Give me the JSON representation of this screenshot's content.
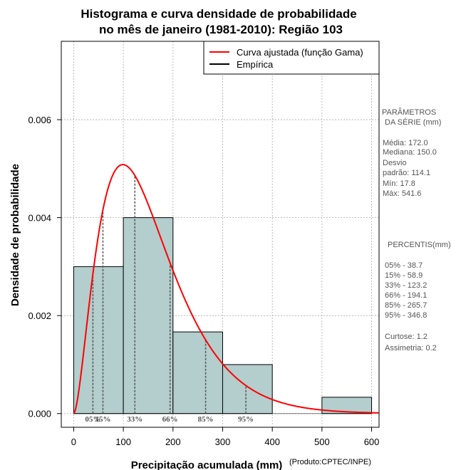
{
  "chart_data": {
    "type": "histogram",
    "title_line1": "Histograma e curva densidade de probabilidade",
    "title_line2": "no mês de janeiro (1981-2010): Região 103",
    "xlabel": "Precipitação acumulada (mm)",
    "ylabel": "Densidade de probabilidade",
    "credit": "(Produto:CPTEC/INPE)",
    "xlim": [
      -25,
      615
    ],
    "ylim": [
      -0.00028,
      0.0076
    ],
    "x_ticks": [
      0,
      100,
      200,
      300,
      400,
      500,
      600
    ],
    "y_ticks": [
      0.0,
      0.002,
      0.004,
      0.006
    ],
    "y_tick_labels": [
      "0.000",
      "0.002",
      "0.004",
      "0.006"
    ],
    "grid": true,
    "bins": [
      {
        "start": 0,
        "end": 100,
        "density": 0.003
      },
      {
        "start": 100,
        "end": 200,
        "density": 0.004
      },
      {
        "start": 200,
        "end": 300,
        "density": 0.001667
      },
      {
        "start": 300,
        "end": 400,
        "density": 0.001
      },
      {
        "start": 400,
        "end": 500,
        "density": 0.0
      },
      {
        "start": 500,
        "end": 600,
        "density": 0.000333
      }
    ],
    "fitted_curve": {
      "distribution": "gamma",
      "shape": 2.75,
      "scale": 56.6,
      "color": "#ff0000"
    },
    "percentile_lines": [
      {
        "label": "05%",
        "value": 38.7
      },
      {
        "label": "15%",
        "value": 58.9
      },
      {
        "label": "33%",
        "value": 123.2
      },
      {
        "label": "66%",
        "value": 194.1
      },
      {
        "label": "85%",
        "value": 265.7
      },
      {
        "label": "95%",
        "value": 346.8
      }
    ],
    "legend": {
      "position": "top-right",
      "entries": [
        {
          "label": "Curva ajustada (função Gama)",
          "color": "#ff0000"
        },
        {
          "label": "Empírica",
          "color": "#000000"
        }
      ]
    },
    "colors": {
      "bar_fill": "#b4cdcd",
      "curve": "#ff0000",
      "grid": "#aaaaaa"
    }
  },
  "side_panel": {
    "params_title_1": "PARÂMETROS",
    "params_title_2": "DA SÉRIE (mm)",
    "media": "Média:  172.0",
    "mediana": "Mediana:  150.0",
    "desvio_1": "Desvio",
    "desvio_2": "padrão:  114.1",
    "min": "Mín:  17.8",
    "max": "Máx:  541.6",
    "percentis_title": "PERCENTIS(mm)",
    "percentis": [
      "05% -   38.7",
      "15% -   58.9",
      "33% -   123.2",
      "66% -   194.1",
      "85% -   265.7",
      "95% -   346.8"
    ],
    "curtose": "Curtose:  1.2",
    "assimetria": "Assimetria:  0.2"
  }
}
